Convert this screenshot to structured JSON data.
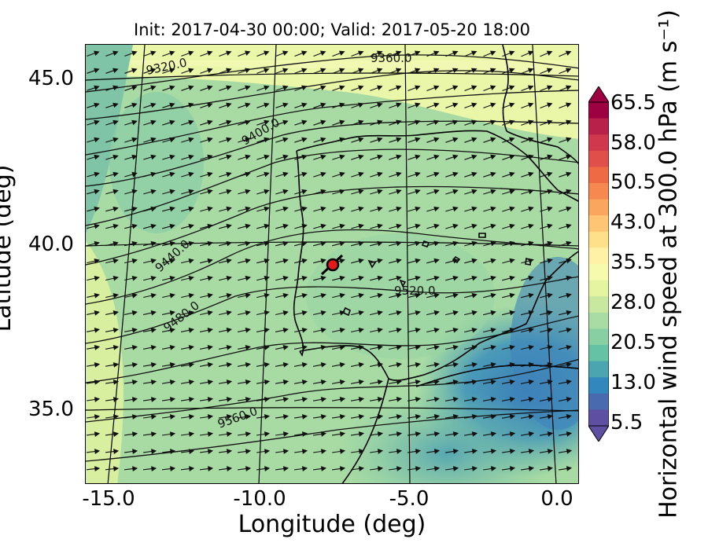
{
  "title": "Init: 2017-04-30 00:00; Valid: 2017-05-20 18:00",
  "xlabel": "Longitude (deg)",
  "ylabel": "Latitude (deg)",
  "colorbar_label": "Horizontal wind speed at 300.0 hPa (m s⁻¹)",
  "x_ticks": [
    "-15.0",
    "-10.0",
    "-5.0",
    "0.0"
  ],
  "y_ticks": [
    "45.0",
    "40.0",
    "35.0"
  ],
  "colorbar_ticks": [
    "65.5",
    "58.0",
    "50.5",
    "43.0",
    "35.5",
    "28.0",
    "20.5",
    "13.0",
    "5.5"
  ],
  "contour_labels": [
    "9320.0",
    "9360.0",
    "9400.0",
    "9440.0",
    "9480.0",
    "9520.0",
    "9560.0"
  ],
  "colors": {
    "low": "#4a4fa3",
    "mid": "#9fd39a",
    "high": "#9e0142",
    "marker": "#e31a1c"
  },
  "map": {
    "lon_range": [
      -16,
      0.2
    ],
    "lat_range": [
      32.8,
      46
    ],
    "marker": {
      "lon": -7.6,
      "lat": 39.3
    }
  }
}
